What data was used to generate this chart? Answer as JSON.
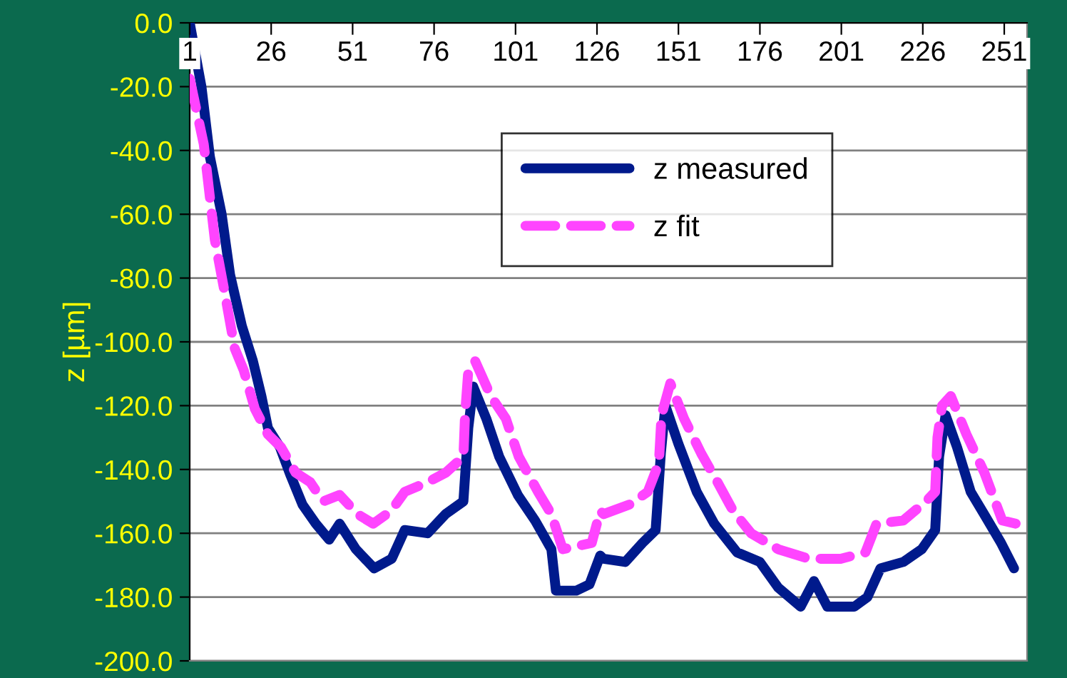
{
  "chart_data": {
    "type": "line",
    "ylabel": "z [µm]",
    "xlim": [
      1,
      258
    ],
    "xticks": [
      1,
      26,
      51,
      76,
      101,
      126,
      151,
      176,
      201,
      226,
      251
    ],
    "ylim": [
      -200,
      0
    ],
    "yticks": [
      {
        "value": 0,
        "label": "0.0"
      },
      {
        "value": -20,
        "label": "-20.0"
      },
      {
        "value": -40,
        "label": "-40.0"
      },
      {
        "value": -60,
        "label": "-60.0"
      },
      {
        "value": -80,
        "label": "-80.0"
      },
      {
        "value": -100,
        "label": "-100.0"
      },
      {
        "value": -120,
        "label": "-120.0"
      },
      {
        "value": -140,
        "label": "-140.0"
      },
      {
        "value": -160,
        "label": "-160.0"
      },
      {
        "value": -180,
        "label": "-180.0"
      },
      {
        "value": -200,
        "label": "-200.0"
      }
    ],
    "grid": "y",
    "legend": "top",
    "series": [
      {
        "name": "z measured",
        "color": "#001a8c",
        "line_style": "solid",
        "x": [
          1,
          4.6,
          7.2,
          10.8,
          13.4,
          17,
          20.4,
          23,
          25,
          28.7,
          32,
          35.6,
          39.7,
          43.8,
          47,
          52,
          57.6,
          63,
          67,
          74,
          79.5,
          85,
          86.5,
          88,
          92,
          96,
          101.7,
          107,
          112,
          113.4,
          119.6,
          123.7,
          127,
          128,
          134.7,
          140,
          144,
          145.6,
          147,
          151,
          156.6,
          162,
          169,
          176,
          181.6,
          188.5,
          192.6,
          196.7,
          205,
          209,
          213,
          220,
          225.7,
          229.8,
          231,
          233,
          236.5,
          240.7,
          244.8,
          250,
          254
        ],
        "values": [
          0,
          -20,
          -42,
          -60,
          -79,
          -95,
          -106,
          -117,
          -127,
          -133,
          -142,
          -151,
          -157,
          -162,
          -157,
          -165,
          -171,
          -168,
          -159,
          -160,
          -154,
          -150,
          -127,
          -114,
          -124,
          -136,
          -148,
          -156,
          -165,
          -178,
          -178,
          -176,
          -167,
          -168,
          -169,
          -163,
          -159,
          -135,
          -120,
          -132,
          -147,
          -157,
          -166,
          -169,
          -177,
          -183,
          -175,
          -183,
          -183,
          -180,
          -171,
          -169,
          -165,
          -159,
          -136,
          -123,
          -133,
          -147,
          -154,
          -163,
          -171
        ]
      },
      {
        "name": "z fit",
        "color": "#ff44ff",
        "line_style": "dashed",
        "x": [
          1,
          5.3,
          8.7,
          12,
          14.8,
          17.6,
          21,
          25,
          29,
          33.5,
          38,
          42,
          47,
          52.5,
          57.3,
          62.8,
          67,
          74,
          79.6,
          85,
          85.5,
          86.5,
          88.6,
          93.4,
          98,
          102,
          107.9,
          112,
          115.5,
          124.4,
          127,
          128,
          136,
          141.6,
          145,
          145.8,
          148.5,
          152.7,
          158,
          163,
          167.8,
          173.3,
          181.6,
          191,
          200.8,
          208.4,
          211.8,
          220,
          227,
          229.8,
          230.5,
          231.9,
          234.6,
          239.4,
          244.9,
          250.4,
          254.6
        ],
        "values": [
          -17.5,
          -38,
          -68,
          -86,
          -102,
          -109,
          -121,
          -129,
          -133,
          -141,
          -144,
          -150,
          -148,
          -154,
          -157,
          -153,
          -147,
          -144,
          -141,
          -136,
          -123,
          -109,
          -106,
          -117,
          -124,
          -136,
          -147,
          -154,
          -165,
          -163,
          -153,
          -154,
          -151,
          -147,
          -138,
          -123,
          -113,
          -124,
          -135,
          -144,
          -153,
          -160,
          -165,
          -168,
          -168,
          -166,
          -157,
          -156,
          -150,
          -147,
          -130,
          -120,
          -117,
          -129,
          -141,
          -156,
          -157
        ]
      }
    ]
  }
}
